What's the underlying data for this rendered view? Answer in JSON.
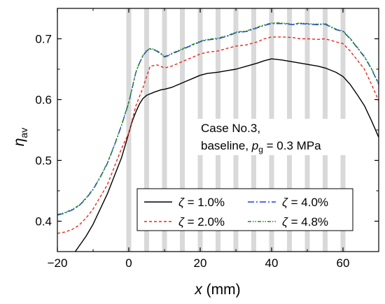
{
  "chart_data": {
    "type": "line",
    "xlabel": {
      "var": "x",
      "unit": " (mm)"
    },
    "ylabel": {
      "var": "η",
      "sub": "av"
    },
    "xlim": [
      -20,
      70
    ],
    "ylim": [
      0.35,
      0.75
    ],
    "xticks": [
      -20,
      0,
      20,
      40,
      60
    ],
    "xtick_labels": [
      "−20",
      "0",
      "20",
      "40",
      "60"
    ],
    "yticks": [
      0.4,
      0.5,
      0.6,
      0.7
    ],
    "ytick_labels": [
      "0.4",
      "0.5",
      "0.6",
      "0.7"
    ],
    "grid": false,
    "legend_placement": "lower-center",
    "shaded_x_positions": [
      0,
      5,
      10,
      15,
      20,
      25,
      30,
      35,
      40,
      45,
      50,
      55,
      60
    ],
    "annotation": {
      "line1": "Case No.3,",
      "line2_prefix": "baseline, ",
      "line2_var": "p",
      "line2_sub": "g",
      "line2_suffix": " = 0.3 MPa"
    },
    "series": [
      {
        "name": "ζ = 1.0%",
        "legend_symbol": "ζ",
        "legend_value": " = 1.0%",
        "color": "#000000",
        "dash": "",
        "x": [
          -15,
          -12,
          -10,
          -8,
          -6,
          -4,
          -2,
          0,
          1,
          2,
          3,
          4,
          5,
          7,
          9,
          10,
          12,
          14,
          16,
          18,
          20,
          22,
          25,
          28,
          30,
          33,
          36,
          38,
          40,
          43,
          46,
          48,
          50,
          53,
          55,
          58,
          60,
          62,
          64,
          66,
          68,
          70
        ],
        "y": [
          0.35,
          0.375,
          0.395,
          0.42,
          0.445,
          0.475,
          0.505,
          0.545,
          0.565,
          0.58,
          0.593,
          0.602,
          0.607,
          0.612,
          0.616,
          0.617,
          0.62,
          0.625,
          0.63,
          0.635,
          0.64,
          0.643,
          0.645,
          0.648,
          0.65,
          0.655,
          0.66,
          0.664,
          0.667,
          0.665,
          0.662,
          0.66,
          0.658,
          0.655,
          0.652,
          0.645,
          0.638,
          0.625,
          0.608,
          0.59,
          0.565,
          0.538
        ]
      },
      {
        "name": "ζ = 2.0%",
        "legend_symbol": "ζ",
        "legend_value": " = 2.0%",
        "color": "#e8281e",
        "dash": "4,3",
        "x": [
          -20,
          -18,
          -16,
          -14,
          -12,
          -10,
          -8,
          -6,
          -4,
          -2,
          0,
          2,
          4,
          5,
          6,
          8,
          10,
          12,
          14,
          16,
          18,
          20,
          22,
          25,
          28,
          30,
          33,
          36,
          38,
          40,
          43,
          46,
          48,
          50,
          53,
          55,
          58,
          60,
          62,
          64,
          66,
          68,
          70
        ],
        "y": [
          0.38,
          0.382,
          0.386,
          0.393,
          0.405,
          0.42,
          0.44,
          0.46,
          0.49,
          0.52,
          0.545,
          0.59,
          0.62,
          0.638,
          0.655,
          0.657,
          0.652,
          0.655,
          0.66,
          0.665,
          0.67,
          0.675,
          0.678,
          0.68,
          0.685,
          0.688,
          0.69,
          0.695,
          0.7,
          0.703,
          0.703,
          0.702,
          0.7,
          0.7,
          0.699,
          0.7,
          0.695,
          0.692,
          0.68,
          0.665,
          0.65,
          0.625,
          0.598
        ]
      },
      {
        "name": "ζ = 4.0%",
        "legend_symbol": "ζ",
        "legend_value": " = 4.0%",
        "color": "#1f3ce0",
        "dash": "9,3,2,3",
        "x": [
          -20,
          -18,
          -16,
          -14,
          -12,
          -10,
          -8,
          -6,
          -4,
          -2,
          0,
          2,
          3,
          4,
          5,
          6,
          7,
          8,
          9,
          10,
          11,
          12,
          14,
          16,
          18,
          20,
          22,
          25,
          28,
          30,
          33,
          36,
          38,
          40,
          43,
          46,
          48,
          50,
          53,
          55,
          58,
          60,
          62,
          64,
          66,
          68,
          70
        ],
        "y": [
          0.41,
          0.413,
          0.418,
          0.425,
          0.437,
          0.452,
          0.472,
          0.495,
          0.525,
          0.558,
          0.595,
          0.645,
          0.66,
          0.672,
          0.68,
          0.683,
          0.682,
          0.679,
          0.675,
          0.67,
          0.672,
          0.675,
          0.68,
          0.685,
          0.69,
          0.695,
          0.698,
          0.7,
          0.705,
          0.71,
          0.712,
          0.718,
          0.722,
          0.725,
          0.725,
          0.723,
          0.725,
          0.724,
          0.723,
          0.724,
          0.715,
          0.712,
          0.7,
          0.685,
          0.67,
          0.65,
          0.625
        ]
      },
      {
        "name": "ζ = 4.8%",
        "legend_symbol": "ζ",
        "legend_value": " = 4.8%",
        "color": "#1e8c1e",
        "dash": "5,2,1.5,2,1.5,2",
        "x": [
          -20,
          -18,
          -16,
          -14,
          -12,
          -10,
          -8,
          -6,
          -4,
          -2,
          0,
          2,
          3,
          4,
          5,
          6,
          7,
          8,
          9,
          10,
          11,
          12,
          14,
          16,
          18,
          20,
          22,
          25,
          28,
          30,
          33,
          36,
          38,
          40,
          43,
          46,
          48,
          50,
          53,
          55,
          58,
          60,
          62,
          64,
          66,
          68,
          70
        ],
        "y": [
          0.411,
          0.414,
          0.419,
          0.426,
          0.438,
          0.453,
          0.473,
          0.496,
          0.526,
          0.559,
          0.596,
          0.646,
          0.661,
          0.673,
          0.681,
          0.684,
          0.683,
          0.68,
          0.676,
          0.671,
          0.673,
          0.676,
          0.681,
          0.686,
          0.691,
          0.696,
          0.699,
          0.701,
          0.706,
          0.711,
          0.713,
          0.719,
          0.723,
          0.726,
          0.726,
          0.724,
          0.726,
          0.725,
          0.724,
          0.725,
          0.716,
          0.713,
          0.701,
          0.686,
          0.671,
          0.651,
          0.626
        ]
      }
    ]
  }
}
